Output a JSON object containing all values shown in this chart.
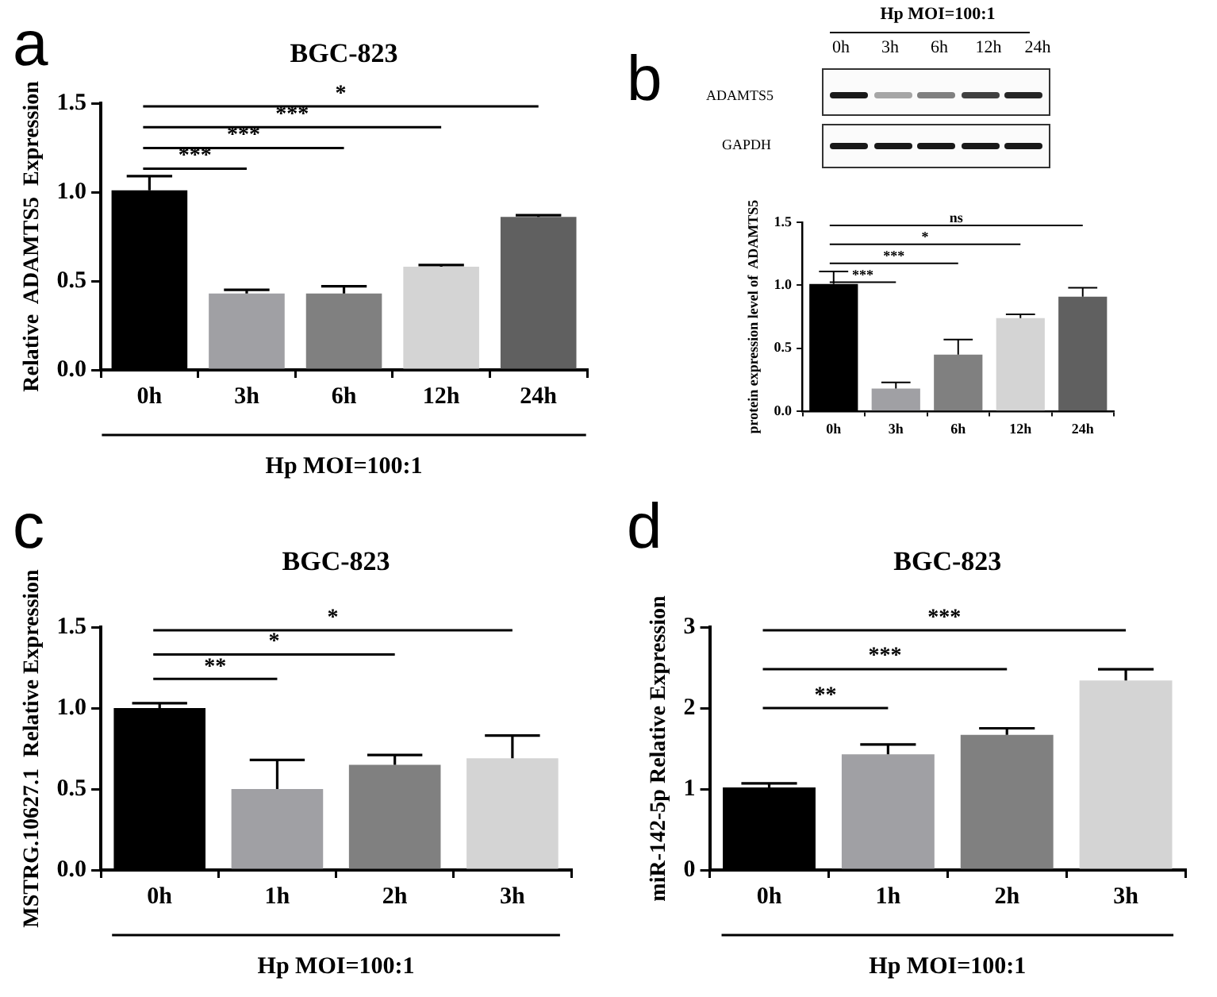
{
  "chart_data": [
    {
      "type": "bar",
      "title": "BGC-823",
      "ylabel": "Relative  ADAMTS5  Expression",
      "xlabel": "Hp MOI=100:1",
      "categories": [
        "0h",
        "3h",
        "6h",
        "12h",
        "24h"
      ],
      "values": [
        1.01,
        0.43,
        0.43,
        0.58,
        0.86
      ],
      "colors": [
        "#000000",
        "#a0a0a4",
        "#808080",
        "#d4d4d4",
        "#606060"
      ],
      "errors": [
        [
          1.01,
          1.09
        ],
        [
          0.43,
          0.45
        ],
        [
          0.43,
          0.47
        ],
        [
          0.58,
          0.59
        ],
        [
          0.86,
          0.87
        ]
      ],
      "ylim": [
        0,
        1.5
      ],
      "yticks": [
        {
          "value": 0,
          "label": "0.0"
        },
        {
          "value": 0.5,
          "label": "0.5"
        },
        {
          "value": 1,
          "label": "1.0"
        },
        {
          "value": 1.5,
          "label": "1.5"
        }
      ],
      "grid": false,
      "legend": false,
      "annotations": [
        "a",
        "***",
        "***",
        "***",
        "*"
      ]
    },
    {
      "type": "bar",
      "ylabel": "protein expression level of  ADAMTS5",
      "categories": [
        "0h",
        "3h",
        "6h",
        "12h",
        "24h"
      ],
      "values": [
        1.01,
        0.18,
        0.45,
        0.74,
        0.91
      ],
      "colors": [
        "#000000",
        "#a0a0a4",
        "#808080",
        "#d4d4d4",
        "#606060"
      ],
      "errors": [
        [
          1.01,
          1.11
        ],
        [
          0.18,
          0.23
        ],
        [
          0.45,
          0.57
        ],
        [
          0.74,
          0.77
        ],
        [
          0.91,
          0.98
        ]
      ],
      "ylim": [
        0,
        1.5
      ],
      "yticks": [
        {
          "value": 0,
          "label": "0.0"
        },
        {
          "value": 0.5,
          "label": "0.5"
        },
        {
          "value": 1,
          "label": "1.0"
        },
        {
          "value": 1.5,
          "label": "1.5"
        }
      ],
      "grid": false,
      "legend": false,
      "annotations": [
        "b",
        "Hp MOI=100:1",
        "0h",
        "3h",
        "6h",
        "12h",
        "24h",
        "ADAMTS5",
        "GAPDH",
        "***",
        "***",
        "*",
        "ns"
      ]
    },
    {
      "type": "bar",
      "title": "BGC-823",
      "ylabel": "MSTRG.10627.1  Relative Expression",
      "xlabel": "Hp MOI=100:1",
      "categories": [
        "0h",
        "1h",
        "2h",
        "3h"
      ],
      "values": [
        1.0,
        0.5,
        0.65,
        0.69
      ],
      "colors": [
        "#000000",
        "#a0a0a4",
        "#808080",
        "#d4d4d4"
      ],
      "errors": [
        [
          1.0,
          1.03
        ],
        [
          0.5,
          0.68
        ],
        [
          0.65,
          0.71
        ],
        [
          0.69,
          0.83
        ]
      ],
      "ylim": [
        0,
        1.5
      ],
      "yticks": [
        {
          "value": 0,
          "label": "0.0"
        },
        {
          "value": 0.5,
          "label": "0.5"
        },
        {
          "value": 1,
          "label": "1.0"
        },
        {
          "value": 1.5,
          "label": "1.5"
        }
      ],
      "grid": false,
      "legend": false,
      "annotations": [
        "c",
        "**",
        "*",
        "*"
      ]
    },
    {
      "type": "bar",
      "title": "BGC-823",
      "ylabel": "miR-142-5p Relative Expression",
      "xlabel": "Hp MOI=100:1",
      "categories": [
        "0h",
        "1h",
        "2h",
        "3h"
      ],
      "values": [
        1.02,
        1.43,
        1.67,
        2.34
      ],
      "colors": [
        "#000000",
        "#a0a0a4",
        "#808080",
        "#d4d4d4"
      ],
      "errors": [
        [
          1.02,
          1.07
        ],
        [
          1.43,
          1.55
        ],
        [
          1.67,
          1.75
        ],
        [
          2.34,
          2.48
        ]
      ],
      "ylim": [
        0,
        3
      ],
      "yticks": [
        0,
        1,
        2,
        3
      ],
      "grid": false,
      "legend": false,
      "annotations": [
        "d",
        "**",
        "***",
        "***"
      ]
    }
  ]
}
